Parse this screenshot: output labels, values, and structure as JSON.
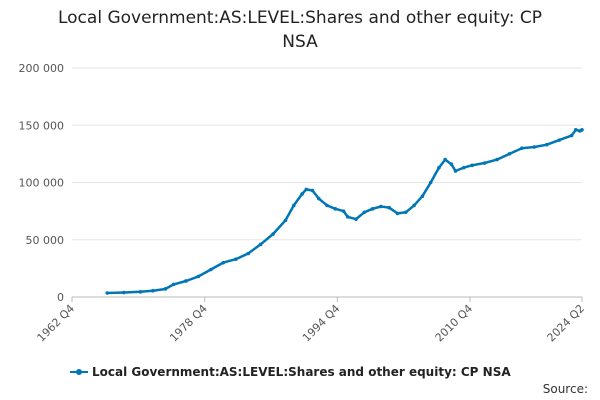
{
  "chart_data": {
    "type": "line",
    "title_lines": [
      "Local Government:AS:LEVEL:Shares and other equity: CP",
      "NSA"
    ],
    "xlabel": "",
    "ylabel": "",
    "ylim": [
      0,
      200000
    ],
    "xlim": [
      1962.75,
      2024.25
    ],
    "y_ticks": [
      {
        "value": 0,
        "label": "0"
      },
      {
        "value": 50000,
        "label": "50 000"
      },
      {
        "value": 100000,
        "label": "100 000"
      },
      {
        "value": 150000,
        "label": "150 000"
      },
      {
        "value": 200000,
        "label": "200 000"
      }
    ],
    "x_ticks": [
      {
        "value": 1962.75,
        "label": "1962 Q4"
      },
      {
        "value": 1978.75,
        "label": "1978 Q4"
      },
      {
        "value": 1994.75,
        "label": "1994 Q4"
      },
      {
        "value": 2010.75,
        "label": "2010 Q4"
      },
      {
        "value": 2024.25,
        "label": "2024 Q2"
      }
    ],
    "grid": true,
    "legend_position": "bottom-left",
    "series": [
      {
        "name": "Local Government:AS:LEVEL:Shares and other equity: CP NSA",
        "color": "#0076b6",
        "points": [
          [
            1967.0,
            3500
          ],
          [
            1969.0,
            3900
          ],
          [
            1971.0,
            4500
          ],
          [
            1972.5,
            5500
          ],
          [
            1974.0,
            7000
          ],
          [
            1975.0,
            11000
          ],
          [
            1976.5,
            14000
          ],
          [
            1978.0,
            18000
          ],
          [
            1979.5,
            24000
          ],
          [
            1981.0,
            30000
          ],
          [
            1982.5,
            33000
          ],
          [
            1984.0,
            38000
          ],
          [
            1985.5,
            46000
          ],
          [
            1987.0,
            55000
          ],
          [
            1988.5,
            67000
          ],
          [
            1989.5,
            80000
          ],
          [
            1990.5,
            90000
          ],
          [
            1991.0,
            94000
          ],
          [
            1991.75,
            93000
          ],
          [
            1992.5,
            86000
          ],
          [
            1993.5,
            80000
          ],
          [
            1994.5,
            77000
          ],
          [
            1995.5,
            75000
          ],
          [
            1996.0,
            70000
          ],
          [
            1997.0,
            68000
          ],
          [
            1998.0,
            74000
          ],
          [
            1999.0,
            77000
          ],
          [
            2000.0,
            79000
          ],
          [
            2001.0,
            78000
          ],
          [
            2002.0,
            73000
          ],
          [
            2003.0,
            74000
          ],
          [
            2004.0,
            80000
          ],
          [
            2005.0,
            88000
          ],
          [
            2006.0,
            100000
          ],
          [
            2007.0,
            113000
          ],
          [
            2007.75,
            120000
          ],
          [
            2008.5,
            116000
          ],
          [
            2009.0,
            110000
          ],
          [
            2010.0,
            113000
          ],
          [
            2011.0,
            115000
          ],
          [
            2012.5,
            117000
          ],
          [
            2014.0,
            120000
          ],
          [
            2015.5,
            125000
          ],
          [
            2017.0,
            130000
          ],
          [
            2018.5,
            131000
          ],
          [
            2020.0,
            133000
          ],
          [
            2021.5,
            137000
          ],
          [
            2023.0,
            141000
          ],
          [
            2023.5,
            146000
          ],
          [
            2024.0,
            145000
          ],
          [
            2024.25,
            146000
          ]
        ]
      }
    ]
  },
  "legend": {
    "label": "Local Government:AS:LEVEL:Shares and other equity: CP NSA"
  },
  "footer": {
    "source_label": "Source:"
  }
}
